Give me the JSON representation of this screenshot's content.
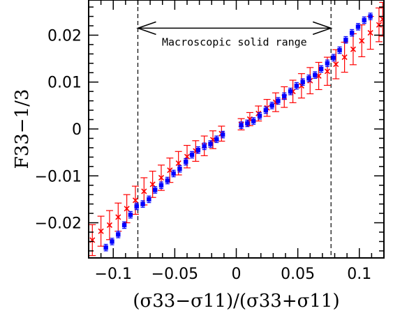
{
  "chart_data": {
    "type": "scatter",
    "title": "",
    "xlabel": "(σ33−σ11)/(σ33+σ11)",
    "ylabel": "F33−1/3",
    "xlim": [
      -0.12,
      0.12
    ],
    "ylim": [
      -0.0275,
      0.0275
    ],
    "x_ticks": [
      -0.1,
      -0.05,
      0,
      0.05,
      0.1
    ],
    "x_tick_labels": [
      "−0.1",
      "−0.05",
      "0",
      "0.05",
      "0.1"
    ],
    "y_ticks": [
      -0.02,
      -0.01,
      0,
      0.01,
      0.02
    ],
    "y_tick_labels": [
      "−0.02",
      "−0.01",
      "0",
      "0.01",
      "0.02"
    ],
    "grid": false,
    "legend": "none",
    "vertical_lines": [
      -0.08,
      0.077
    ],
    "annotation": {
      "text": "Macroscopic solid range",
      "arrow_from": -0.08,
      "arrow_to": 0.077,
      "arrow_y": 0.0215,
      "text_y": 0.0185
    },
    "series": [
      {
        "color": "#ff0000",
        "marker": "x",
        "error_bars": true,
        "points": [
          [
            -0.117,
            -0.0237,
            0.0033
          ],
          [
            -0.11,
            -0.0218,
            0.0032
          ],
          [
            -0.103,
            -0.0205,
            0.0031
          ],
          [
            -0.096,
            -0.0188,
            0.003
          ],
          [
            -0.089,
            -0.017,
            0.003
          ],
          [
            -0.082,
            -0.0152,
            0.003
          ],
          [
            -0.075,
            -0.0133,
            0.0029
          ],
          [
            -0.068,
            -0.0118,
            0.0028
          ],
          [
            -0.061,
            -0.0104,
            0.0027
          ],
          [
            -0.054,
            -0.0088,
            0.0026
          ],
          [
            -0.047,
            -0.0073,
            0.0025
          ],
          [
            -0.04,
            -0.0059,
            0.0024
          ],
          [
            -0.033,
            -0.0047,
            0.0022
          ],
          [
            -0.026,
            -0.0036,
            0.0021
          ],
          [
            -0.019,
            -0.0023,
            0.0019
          ],
          [
            -0.012,
            -0.001,
            0.0016
          ],
          [
            0.004,
            0.001,
            0.0012
          ],
          [
            0.011,
            0.0021,
            0.0014
          ],
          [
            0.018,
            0.0033,
            0.0016
          ],
          [
            0.025,
            0.0045,
            0.0018
          ],
          [
            0.032,
            0.0057,
            0.002
          ],
          [
            0.039,
            0.0068,
            0.0022
          ],
          [
            0.046,
            0.008,
            0.0024
          ],
          [
            0.053,
            0.0092,
            0.0026
          ],
          [
            0.06,
            0.0103,
            0.0028
          ],
          [
            0.067,
            0.0113,
            0.0029
          ],
          [
            0.074,
            0.0123,
            0.003
          ],
          [
            0.081,
            0.0138,
            0.0031
          ],
          [
            0.088,
            0.0153,
            0.0032
          ],
          [
            0.095,
            0.017,
            0.0033
          ],
          [
            0.102,
            0.0188,
            0.0034
          ],
          [
            0.109,
            0.0205,
            0.0035
          ],
          [
            0.116,
            0.0222,
            0.0036
          ],
          [
            0.119,
            0.0234,
            0.0036
          ]
        ]
      },
      {
        "color": "#0000ff",
        "marker": "square",
        "error_bars": true,
        "points": [
          [
            -0.106,
            -0.0253,
            0.0007
          ],
          [
            -0.101,
            -0.024,
            0.0007
          ],
          [
            -0.096,
            -0.0225,
            0.0007
          ],
          [
            -0.091,
            -0.0205,
            0.0007
          ],
          [
            -0.086,
            -0.0183,
            0.0007
          ],
          [
            -0.081,
            -0.0165,
            0.0007
          ],
          [
            -0.076,
            -0.016,
            0.0007
          ],
          [
            -0.071,
            -0.015,
            0.0007
          ],
          [
            -0.066,
            -0.013,
            0.0007
          ],
          [
            -0.061,
            -0.012,
            0.0007
          ],
          [
            -0.056,
            -0.011,
            0.0007
          ],
          [
            -0.051,
            -0.0095,
            0.0007
          ],
          [
            -0.046,
            -0.0085,
            0.0007
          ],
          [
            -0.041,
            -0.007,
            0.0007
          ],
          [
            -0.036,
            -0.0055,
            0.0007
          ],
          [
            -0.031,
            -0.0045,
            0.0007
          ],
          [
            -0.026,
            -0.0037,
            0.0007
          ],
          [
            -0.021,
            -0.0032,
            0.0007
          ],
          [
            -0.016,
            -0.0022,
            0.0007
          ],
          [
            -0.011,
            -0.0012,
            0.0007
          ],
          [
            0.004,
            0.0008,
            0.0007
          ],
          [
            0.009,
            0.0012,
            0.0007
          ],
          [
            0.014,
            0.0017,
            0.0007
          ],
          [
            0.019,
            0.0028,
            0.0007
          ],
          [
            0.024,
            0.004,
            0.0007
          ],
          [
            0.029,
            0.005,
            0.0007
          ],
          [
            0.034,
            0.006,
            0.0007
          ],
          [
            0.039,
            0.007,
            0.0007
          ],
          [
            0.044,
            0.008,
            0.0007
          ],
          [
            0.049,
            0.0092,
            0.0007
          ],
          [
            0.054,
            0.01,
            0.0007
          ],
          [
            0.059,
            0.0108,
            0.0007
          ],
          [
            0.064,
            0.0115,
            0.0007
          ],
          [
            0.069,
            0.0128,
            0.0007
          ],
          [
            0.074,
            0.014,
            0.0007
          ],
          [
            0.079,
            0.0152,
            0.0007
          ],
          [
            0.084,
            0.0168,
            0.0007
          ],
          [
            0.089,
            0.019,
            0.0007
          ],
          [
            0.094,
            0.0205,
            0.0007
          ],
          [
            0.099,
            0.0218,
            0.0007
          ],
          [
            0.104,
            0.0232,
            0.0007
          ],
          [
            0.109,
            0.024,
            0.0007
          ]
        ]
      }
    ]
  }
}
